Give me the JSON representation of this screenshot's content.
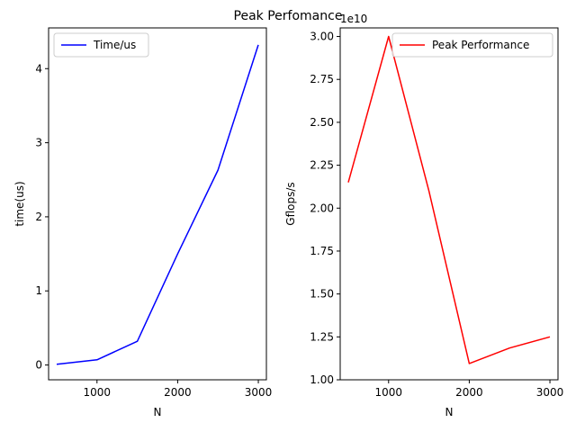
{
  "figure": {
    "suptitle": "Peak Perfomance"
  },
  "chart_data": [
    {
      "type": "line",
      "title": "",
      "xlabel": "N",
      "ylabel": "time(us)",
      "xlim": [
        400,
        3100
      ],
      "ylim": [
        -0.2,
        4.55
      ],
      "xticks": [
        1000,
        2000,
        3000
      ],
      "xtick_labels": [
        "1000",
        "2000",
        "3000"
      ],
      "yticks": [
        0,
        1,
        2,
        3,
        4
      ],
      "ytick_labels": [
        "0",
        "1",
        "2",
        "3",
        "4"
      ],
      "offset_text": "",
      "grid": false,
      "legend": "upper-left",
      "series": [
        {
          "name": "Time/us",
          "color": "#0000ff",
          "x": [
            500,
            1000,
            1500,
            2000,
            2500,
            3000
          ],
          "y": [
            0.01,
            0.07,
            0.32,
            1.5,
            2.63,
            4.32
          ]
        }
      ]
    },
    {
      "type": "line",
      "title": "",
      "xlabel": "N",
      "ylabel": "Gflops/s",
      "xlim": [
        400,
        3100
      ],
      "ylim": [
        1.0,
        3.05
      ],
      "xticks": [
        1000,
        2000,
        3000
      ],
      "xtick_labels": [
        "1000",
        "2000",
        "3000"
      ],
      "yticks": [
        1.0,
        1.25,
        1.5,
        1.75,
        2.0,
        2.25,
        2.5,
        2.75,
        3.0
      ],
      "ytick_labels": [
        "1.00",
        "1.25",
        "1.50",
        "1.75",
        "2.00",
        "2.25",
        "2.50",
        "2.75",
        "3.00"
      ],
      "offset_text": "1e10",
      "grid": false,
      "legend": "upper-right",
      "series": [
        {
          "name": "Peak Performance",
          "color": "#ff0000",
          "x": [
            500,
            1000,
            1500,
            2000,
            2500,
            3000
          ],
          "y": [
            2.15,
            3.0,
            2.1,
            1.095,
            1.185,
            1.25
          ]
        }
      ]
    }
  ]
}
